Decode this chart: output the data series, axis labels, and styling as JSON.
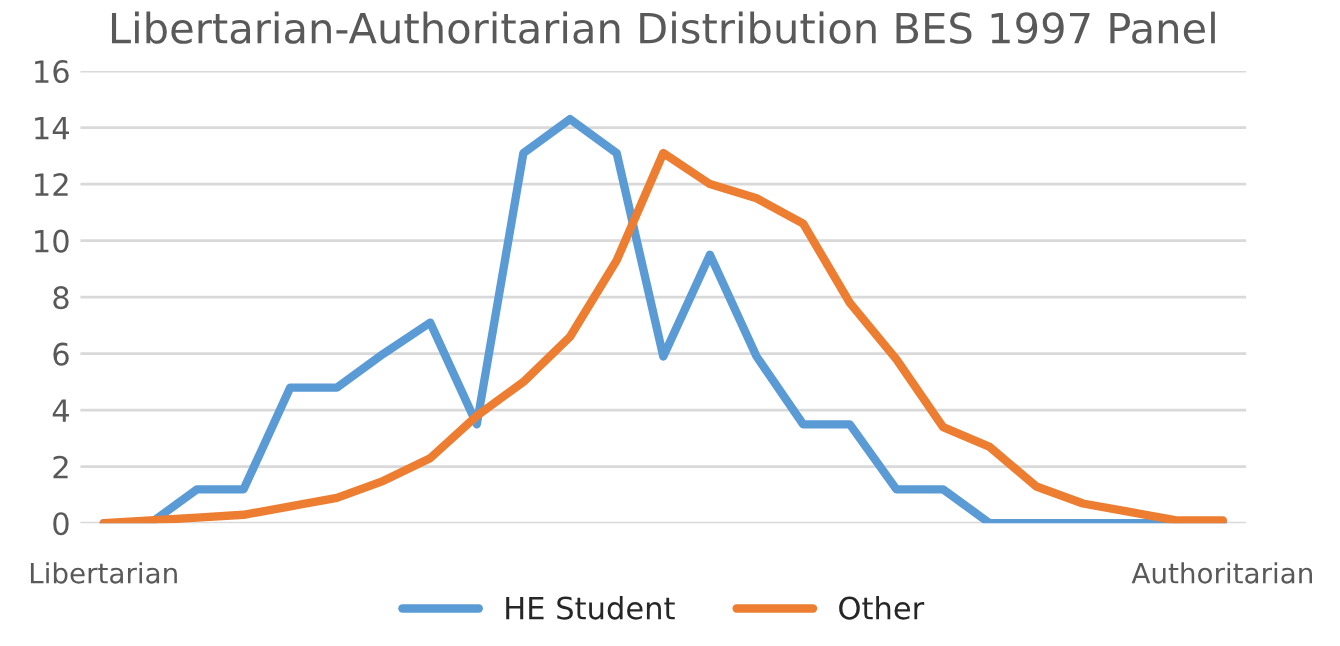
{
  "chart_data": {
    "type": "line",
    "title": "Libertarian-Authoritarian Distribution BES 1997 Panel",
    "categories": [
      "Libertarian",
      null,
      null,
      null,
      null,
      null,
      null,
      null,
      null,
      null,
      null,
      null,
      null,
      null,
      null,
      null,
      null,
      null,
      null,
      null,
      null,
      null,
      null,
      null,
      "Authoritarian"
    ],
    "series": [
      {
        "name": "HE Student",
        "color": "#5b9bd5",
        "values": [
          0,
          0,
          1.2,
          1.2,
          4.8,
          4.8,
          6,
          7.1,
          3.5,
          13.1,
          14.3,
          13.1,
          5.9,
          9.5,
          5.9,
          3.5,
          3.5,
          1.2,
          1.2,
          0,
          0,
          0,
          0,
          0,
          0
        ]
      },
      {
        "name": "Other",
        "color": "#ed7d31",
        "values": [
          0,
          0.1,
          0.2,
          0.3,
          0.6,
          0.9,
          1.5,
          2.3,
          3.8,
          5,
          6.6,
          9.3,
          13.1,
          12,
          11.5,
          10.6,
          7.8,
          5.8,
          3.4,
          2.7,
          1.3,
          0.7,
          0.4,
          0.1,
          0.1
        ]
      }
    ],
    "ylim": [
      0,
      16
    ],
    "yticks": [
      0,
      2,
      4,
      6,
      8,
      10,
      12,
      14,
      16
    ],
    "grid": "y",
    "legend": "bottom",
    "marker": "none",
    "line_style": "solid"
  }
}
